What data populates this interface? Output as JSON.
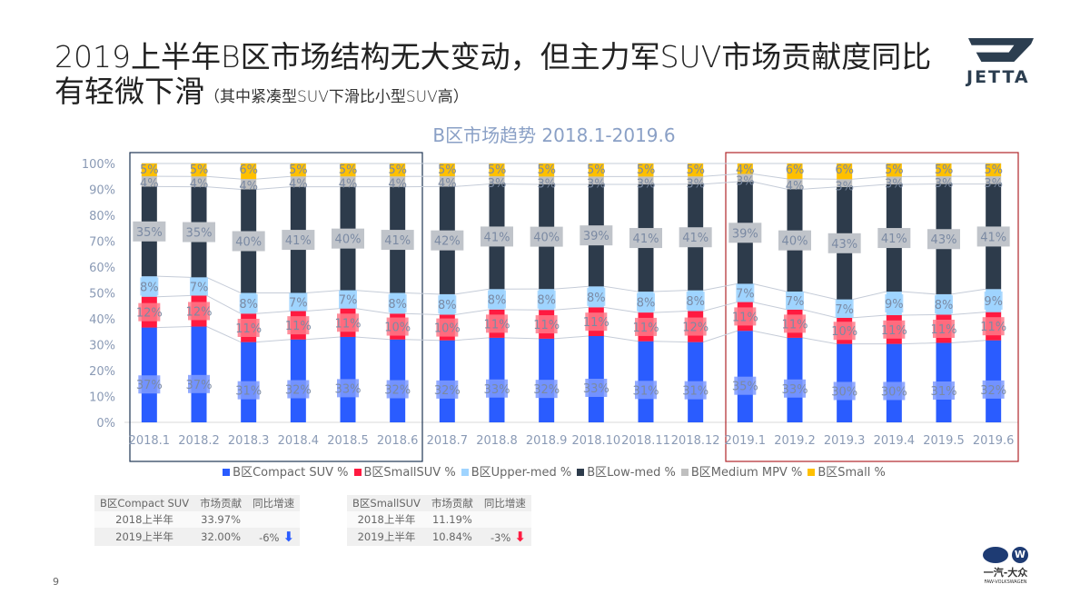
{
  "header": {
    "title": "2019上半年B区市场结构无大变动，但主力军SUV市场贡献度同比有轻微下滑",
    "subtitle": "（其中紧凑型SUV下滑比小型SUV高）"
  },
  "logo": {
    "brand": "JETTA",
    "partner_cn": "一汽-大众",
    "partner_en": "FAW-VOLKSWAGEN"
  },
  "page_number": "9",
  "chart_data": {
    "type": "bar",
    "stacked": true,
    "percent_stacked": true,
    "title": "B区市场趋势 2018.1-2019.6",
    "ylim": [
      0,
      100
    ],
    "yticks": [
      "0%",
      "10%",
      "20%",
      "30%",
      "40%",
      "50%",
      "60%",
      "70%",
      "80%",
      "90%",
      "100%"
    ],
    "grid": false,
    "legend": "bottom",
    "categories": [
      "2018.1",
      "2018.2",
      "2018.3",
      "2018.4",
      "2018.5",
      "2018.6",
      "2018.7",
      "2018.8",
      "2018.9",
      "2018.10",
      "2018.11",
      "2018.12",
      "2019.1",
      "2019.2",
      "2019.3",
      "2019.4",
      "2019.5",
      "2019.6"
    ],
    "series": [
      {
        "name": "B区Compact SUV %",
        "color": "#2a5cff",
        "label_bg": "#7f9bff",
        "values": [
          37,
          37,
          31,
          32,
          33,
          32,
          32,
          33,
          32,
          33,
          31,
          31,
          35,
          33,
          30,
          30,
          31,
          32
        ]
      },
      {
        "name": "B区SmallSUV %",
        "color": "#ff1a40",
        "label_bg": "#ff7a8a",
        "values": [
          12,
          12,
          11,
          11,
          11,
          10,
          10,
          11,
          11,
          11,
          11,
          12,
          11,
          11,
          10,
          11,
          11,
          11
        ]
      },
      {
        "name": "B区Upper-med %",
        "color": "#9fd4ff",
        "label_bg": "#9fd4ff",
        "values": [
          8,
          7,
          8,
          7,
          7,
          8,
          8,
          8,
          8,
          8,
          8,
          8,
          7,
          7,
          7,
          9,
          8,
          9
        ]
      },
      {
        "name": "B区Low-med %",
        "color": "#2d3b4b",
        "label_bg": "#c0c4ca",
        "values": [
          35,
          35,
          40,
          41,
          40,
          41,
          42,
          41,
          40,
          39,
          41,
          41,
          39,
          40,
          43,
          41,
          43,
          41
        ]
      },
      {
        "name": "B区Medium MPV %",
        "color": "#bfbfbf",
        "label_bg": "#bfbfbf",
        "values": [
          4,
          4,
          4,
          4,
          4,
          4,
          4,
          3,
          3,
          3,
          3,
          3,
          3,
          4,
          3,
          3,
          3,
          3
        ]
      },
      {
        "name": "B区Small %",
        "color": "#ffc000",
        "label_bg": "#ffc000",
        "values": [
          5,
          5,
          6,
          5,
          5,
          5,
          5,
          5,
          5,
          5,
          5,
          5,
          4,
          6,
          6,
          5,
          5,
          5
        ]
      }
    ],
    "highlight_boxes": [
      {
        "from": "2018.1",
        "to": "2018.6",
        "color": "#1f3554"
      },
      {
        "from": "2019.1",
        "to": "2019.6",
        "color": "#b0252a"
      }
    ]
  },
  "tables": [
    {
      "headers": [
        "B区Compact SUV",
        "市场贡献",
        "同比增速"
      ],
      "rows": [
        [
          "2018上半年",
          "33.97%",
          ""
        ],
        [
          "2019上半年",
          "32.00%",
          "-6%"
        ]
      ],
      "arrow": "down",
      "arrow_color": "#2a5cff"
    },
    {
      "headers": [
        "B区SmallSUV",
        "市场贡献",
        "同比增速"
      ],
      "rows": [
        [
          "2018上半年",
          "11.19%",
          ""
        ],
        [
          "2019上半年",
          "10.84%",
          "-3%"
        ]
      ],
      "arrow": "down",
      "arrow_color": "#ff1a40"
    }
  ]
}
